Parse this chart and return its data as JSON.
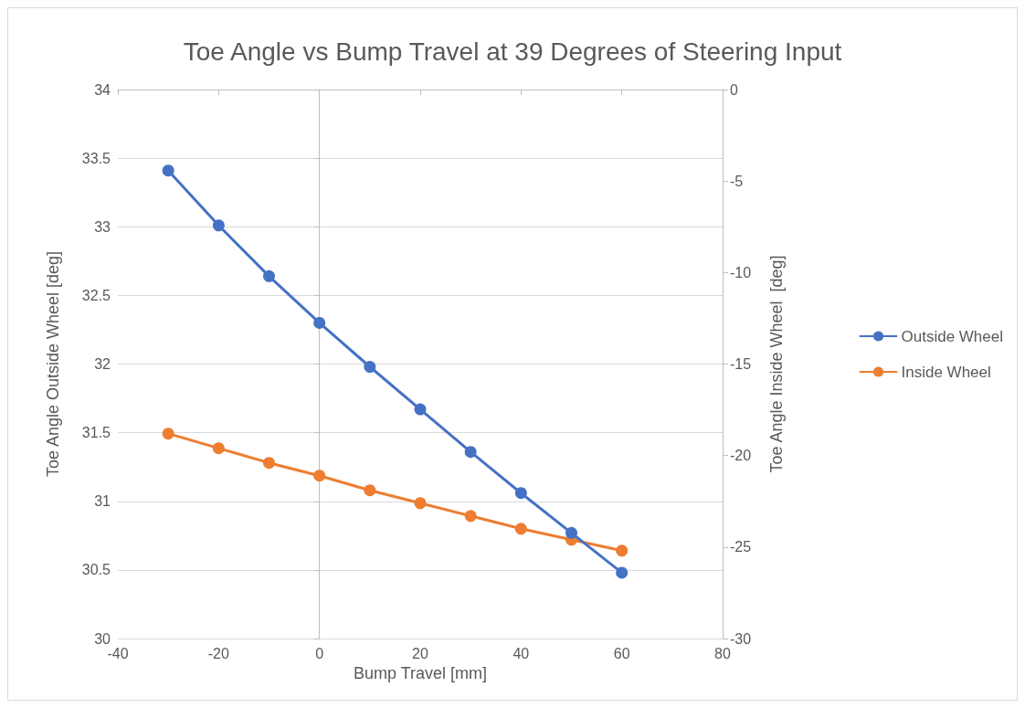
{
  "chart_data": {
    "type": "line",
    "title": "Toe Angle vs Bump Travel at 39 Degrees of Steering Input",
    "xlabel": "Bump Travel [mm]",
    "ylabel": "Toe Angle Outside Wheel [deg]",
    "y2label": "Toe Angle Inside Wheel  [deg]",
    "x": [
      -30,
      -20,
      -10,
      0,
      10,
      20,
      30,
      40,
      50,
      60
    ],
    "series": [
      {
        "name": "Outside Wheel",
        "color": "#4472c4",
        "values": [
          33.41,
          33.01,
          32.64,
          32.3,
          31.98,
          31.67,
          31.36,
          31.06,
          30.77,
          30.48
        ]
      },
      {
        "name": "Inside Wheel",
        "color": "#ed7d31",
        "axis": "y2",
        "values": [
          -18.8,
          -19.6,
          -20.4,
          -21.1,
          -21.9,
          -22.6,
          -23.3,
          -24.0,
          -24.6,
          -25.2
        ]
      }
    ],
    "xlim": [
      -40,
      80
    ],
    "xticks": [
      -40,
      -20,
      0,
      20,
      40,
      60,
      80
    ],
    "ylim": [
      30,
      34
    ],
    "yticks": [
      30,
      30.5,
      31,
      31.5,
      32,
      32.5,
      33,
      33.5,
      34
    ],
    "y2lim": [
      -30,
      0
    ],
    "y2ticks": [
      -30,
      -25,
      -20,
      -15,
      -10,
      -5,
      0
    ],
    "grid": "y",
    "legend": "right",
    "marker": "circle",
    "line_style": "solid"
  }
}
